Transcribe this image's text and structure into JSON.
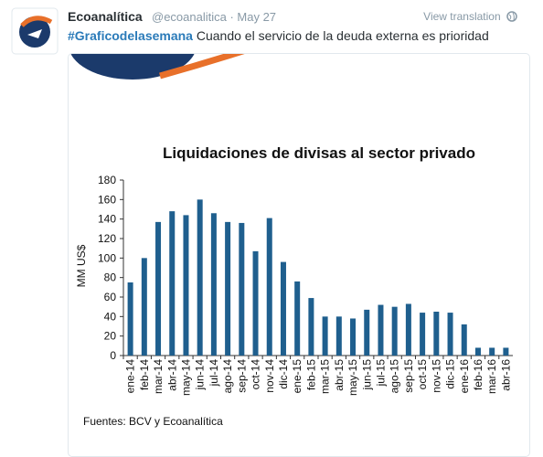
{
  "tweet": {
    "name": "Ecoanalítica",
    "meta": "@ecoanalitica · May 27",
    "view_translation": "View translation",
    "hashtag": "#Graficodelasemana",
    "text": "Cuando el servicio de la deuda externa es prioridad"
  },
  "chart_data": {
    "type": "bar",
    "title": "Liquidaciones de divisas al sector privado",
    "ylabel": "MM US$",
    "source": "Fuentes: BCV y Ecoanalítica",
    "categories": [
      "ene-14",
      "feb-14",
      "mar-14",
      "abr-14",
      "may-14",
      "jun-14",
      "jul-14",
      "ago-14",
      "sep-14",
      "oct-14",
      "nov-14",
      "dic-14",
      "ene-15",
      "feb-15",
      "mar-15",
      "abr-15",
      "may-15",
      "jun-15",
      "jul-15",
      "ago-15",
      "sep-15",
      "oct-15",
      "nov-15",
      "dic-15",
      "ene-16",
      "feb-16",
      "mar-16",
      "abr-16"
    ],
    "values": [
      75,
      100,
      137,
      148,
      144,
      160,
      146,
      137,
      136,
      107,
      141,
      96,
      76,
      59,
      40,
      40,
      38,
      47,
      52,
      50,
      53,
      44,
      45,
      44,
      32,
      8,
      8,
      8
    ],
    "color": "#1f5f8e",
    "ylim": [
      0,
      180
    ],
    "yticks": [
      0,
      20,
      40,
      60,
      80,
      100,
      120,
      140,
      160,
      180
    ],
    "grid": false
  }
}
